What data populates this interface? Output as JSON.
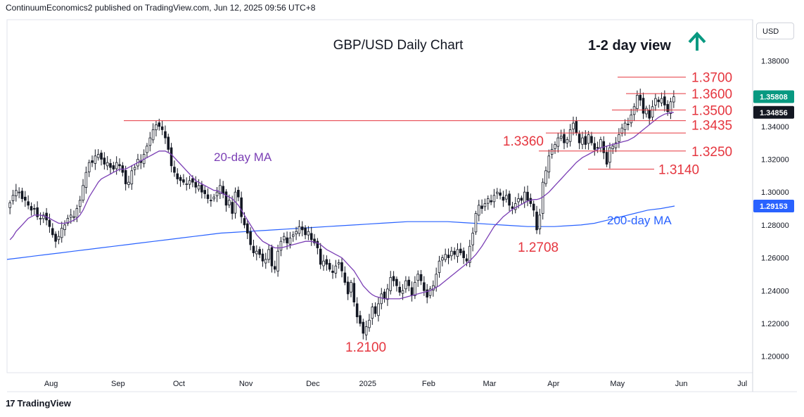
{
  "header": {
    "publisher_text": "ContinuumEconomics2 published on TradingView.com, Jun 12, 2025 09:56 UTC+8"
  },
  "footer": {
    "brand": "TradingView",
    "logo_glyph": "17"
  },
  "currency_button": "USD",
  "colors": {
    "up": "#089981",
    "down": "#f23645",
    "ma20": "#7b3fb5",
    "ma200": "#2962ff",
    "level": "#e5363f",
    "arrow": "#089981",
    "badge_dark": "#131722"
  },
  "chart_data": {
    "type": "candlestick",
    "title": "GBP/USD Daily Chart",
    "annotation_view": "1-2 day view",
    "view_direction_icon": "arrow-up-icon",
    "ylim": [
      1.19,
      1.405
    ],
    "y_ticks": [
      "1.38000",
      "1.36000",
      "1.34000",
      "1.32000",
      "1.30000",
      "1.28000",
      "1.26000",
      "1.24000",
      "1.22000",
      "1.20000"
    ],
    "x_ticks": [
      "Aug",
      "Sep",
      "Oct",
      "Nov",
      "Dec",
      "2025",
      "Feb",
      "Mar",
      "Apr",
      "May",
      "Jun",
      "Jul"
    ],
    "price_badges": [
      {
        "label": "1.35808",
        "value": 1.35808,
        "style": "last"
      },
      {
        "label": "1.34856",
        "value": 1.34856,
        "style": "ma20"
      },
      {
        "label": "1.29153",
        "value": 1.29153,
        "style": "ma200"
      }
    ],
    "levels": [
      {
        "label": "1.3700",
        "value": 1.37
      },
      {
        "label": "1.3600",
        "value": 1.36
      },
      {
        "label": "1.3500",
        "value": 1.35
      },
      {
        "label": "1.3435",
        "value": 1.3435
      },
      {
        "label": "1.3360",
        "value": 1.336
      },
      {
        "label": "1.3250",
        "value": 1.325
      },
      {
        "label": "1.3140",
        "value": 1.314
      }
    ],
    "annotations": [
      {
        "text": "1.2100",
        "value": 1.21
      },
      {
        "text": "1.2708",
        "value": 1.2708
      },
      {
        "text": "20-day MA"
      },
      {
        "text": "200-day MA"
      }
    ],
    "close": [
      1.2935,
      1.298,
      1.301,
      1.3,
      1.296,
      1.295,
      1.292,
      1.289,
      1.29,
      1.285,
      1.284,
      1.286,
      1.283,
      1.279,
      1.274,
      1.27,
      1.273,
      1.278,
      1.28,
      1.284,
      1.286,
      1.285,
      1.29,
      1.295,
      1.304,
      1.312,
      1.318,
      1.318,
      1.322,
      1.323,
      1.32,
      1.317,
      1.318,
      1.315,
      1.314,
      1.318,
      1.316,
      1.312,
      1.305,
      1.306,
      1.313,
      1.315,
      1.32,
      1.318,
      1.323,
      1.328,
      1.333,
      1.338,
      1.341,
      1.34,
      1.338,
      1.333,
      1.326,
      1.316,
      1.312,
      1.308,
      1.307,
      1.306,
      1.305,
      1.307,
      1.306,
      1.303,
      1.304,
      1.3,
      1.299,
      1.296,
      1.295,
      1.297,
      1.3,
      1.304,
      1.299,
      1.292,
      1.295,
      1.287,
      1.3,
      1.297,
      1.285,
      1.28,
      1.275,
      1.268,
      1.263,
      1.264,
      1.262,
      1.258,
      1.259,
      1.265,
      1.255,
      1.253,
      1.264,
      1.27,
      1.273,
      1.269,
      1.272,
      1.274,
      1.276,
      1.279,
      1.277,
      1.274,
      1.276,
      1.271,
      1.269,
      1.266,
      1.256,
      1.258,
      1.256,
      1.253,
      1.251,
      1.255,
      1.257,
      1.252,
      1.245,
      1.238,
      1.245,
      1.233,
      1.224,
      1.22,
      1.214,
      1.218,
      1.222,
      1.23,
      1.226,
      1.232,
      1.238,
      1.235,
      1.241,
      1.248,
      1.246,
      1.243,
      1.239,
      1.24,
      1.246,
      1.243,
      1.237,
      1.245,
      1.25,
      1.246,
      1.24,
      1.236,
      1.241,
      1.243,
      1.25,
      1.258,
      1.26,
      1.262,
      1.26,
      1.264,
      1.262,
      1.265,
      1.263,
      1.26,
      1.258,
      1.267,
      1.275,
      1.287,
      1.292,
      1.29,
      1.293,
      1.296,
      1.294,
      1.298,
      1.3,
      1.298,
      1.295,
      1.298,
      1.292,
      1.29,
      1.293,
      1.296,
      1.295,
      1.3,
      1.295,
      1.293,
      1.289,
      1.277,
      1.286,
      1.306,
      1.313,
      1.322,
      1.326,
      1.329,
      1.333,
      1.334,
      1.33,
      1.332,
      1.338,
      1.342,
      1.336,
      1.33,
      1.333,
      1.329,
      1.335,
      1.33,
      1.326,
      1.327,
      1.332,
      1.324,
      1.317,
      1.327,
      1.328,
      1.33,
      1.335,
      1.339,
      1.342,
      1.341,
      1.347,
      1.352,
      1.359,
      1.356,
      1.348,
      1.351,
      1.345,
      1.352,
      1.357,
      1.355,
      1.357,
      1.353,
      1.349,
      1.355,
      1.3581
    ],
    "ma20": [
      1.271,
      1.273,
      1.276,
      1.278,
      1.28,
      1.282,
      1.284,
      1.285,
      1.286,
      1.286,
      1.286,
      1.2855,
      1.285,
      1.284,
      1.283,
      1.282,
      1.281,
      1.281,
      1.281,
      1.2815,
      1.282,
      1.283,
      1.284,
      1.286,
      1.289,
      1.293,
      1.297,
      1.3,
      1.303,
      1.306,
      1.308,
      1.309,
      1.31,
      1.311,
      1.312,
      1.313,
      1.314,
      1.314,
      1.314,
      1.315,
      1.316,
      1.317,
      1.318,
      1.319,
      1.32,
      1.321,
      1.322,
      1.323,
      1.324,
      1.325,
      1.325,
      1.325,
      1.324,
      1.323,
      1.321,
      1.319,
      1.317,
      1.315,
      1.313,
      1.311,
      1.309,
      1.307,
      1.306,
      1.305,
      1.304,
      1.303,
      1.302,
      1.301,
      1.301,
      1.3,
      1.299,
      1.298,
      1.297,
      1.296,
      1.294,
      1.292,
      1.289,
      1.286,
      1.283,
      1.28,
      1.277,
      1.274,
      1.272,
      1.27,
      1.269,
      1.268,
      1.267,
      1.266,
      1.266,
      1.266,
      1.2665,
      1.267,
      1.2675,
      1.268,
      1.2685,
      1.269,
      1.2695,
      1.27,
      1.27,
      1.27,
      1.2695,
      1.269,
      1.268,
      1.2665,
      1.265,
      1.264,
      1.263,
      1.262,
      1.261,
      1.26,
      1.258,
      1.256,
      1.254,
      1.252,
      1.249,
      1.246,
      1.243,
      1.241,
      1.239,
      1.2375,
      1.2365,
      1.236,
      1.2355,
      1.235,
      1.235,
      1.235,
      1.235,
      1.235,
      1.235,
      1.2355,
      1.236,
      1.2365,
      1.237,
      1.2375,
      1.238,
      1.2385,
      1.239,
      1.2395,
      1.24,
      1.241,
      1.242,
      1.243,
      1.2445,
      1.246,
      1.2475,
      1.249,
      1.2505,
      1.252,
      1.2535,
      1.255,
      1.2565,
      1.258,
      1.26,
      1.262,
      1.2645,
      1.267,
      1.27,
      1.273,
      1.276,
      1.279,
      1.281,
      1.283,
      1.285,
      1.2865,
      1.288,
      1.2895,
      1.2905,
      1.2915,
      1.2925,
      1.2935,
      1.2945,
      1.295,
      1.2955,
      1.2955,
      1.296,
      1.297,
      1.2985,
      1.3,
      1.302,
      1.304,
      1.306,
      1.308,
      1.31,
      1.312,
      1.314,
      1.316,
      1.318,
      1.3195,
      1.321,
      1.322,
      1.323,
      1.324,
      1.325,
      1.326,
      1.327,
      1.3275,
      1.328,
      1.3285,
      1.329,
      1.3295,
      1.33,
      1.3305,
      1.331,
      1.3315,
      1.3325,
      1.3335,
      1.335,
      1.3365,
      1.338,
      1.3395,
      1.341,
      1.3425,
      1.344,
      1.3455,
      1.3465,
      1.3475,
      1.348,
      1.3483,
      1.3486
    ],
    "ma200": [
      1.259,
      1.26,
      1.261,
      1.262,
      1.263,
      1.264,
      1.265,
      1.266,
      1.267,
      1.268,
      1.269,
      1.27,
      1.271,
      1.272,
      1.273,
      1.274,
      1.275,
      1.2755,
      1.276,
      1.2765,
      1.277,
      1.2775,
      1.278,
      1.2785,
      1.279,
      1.2795,
      1.28,
      1.2805,
      1.281,
      1.2815,
      1.282,
      1.282,
      1.282,
      1.282,
      1.2815,
      1.281,
      1.2805,
      1.28,
      1.2795,
      1.279,
      1.279,
      1.279,
      1.2795,
      1.28,
      1.281,
      1.283,
      1.285,
      1.287,
      1.289,
      1.29,
      1.2915
    ]
  }
}
